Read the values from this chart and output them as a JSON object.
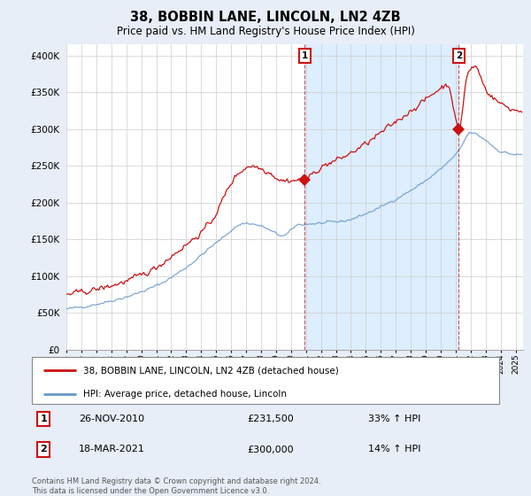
{
  "title": "38, BOBBIN LANE, LINCOLN, LN2 4ZB",
  "subtitle": "Price paid vs. HM Land Registry's House Price Index (HPI)",
  "background_color": "#e8eef8",
  "plot_bg_color": "#ffffff",
  "ytick_values": [
    0,
    50000,
    100000,
    150000,
    200000,
    250000,
    300000,
    350000,
    400000
  ],
  "ylim": [
    0,
    415000
  ],
  "sale1_x": 2010.91,
  "sale1_value": 231500,
  "sale1_label": "1",
  "sale1_date": "26-NOV-2010",
  "sale1_price": "£231,500",
  "sale1_note": "33% ↑ HPI",
  "sale2_x": 2021.21,
  "sale2_value": 300000,
  "sale2_label": "2",
  "sale2_date": "18-MAR-2021",
  "sale2_price": "£300,000",
  "sale2_note": "14% ↑ HPI",
  "hpi_color": "#6699cc",
  "price_color": "#cc1111",
  "shade_color": "#ddeeff",
  "grid_color": "#cccccc",
  "legend_label_price": "38, BOBBIN LANE, LINCOLN, LN2 4ZB (detached house)",
  "legend_label_hpi": "HPI: Average price, detached house, Lincoln",
  "footer": "Contains HM Land Registry data © Crown copyright and database right 2024.\nThis data is licensed under the Open Government Licence v3.0."
}
